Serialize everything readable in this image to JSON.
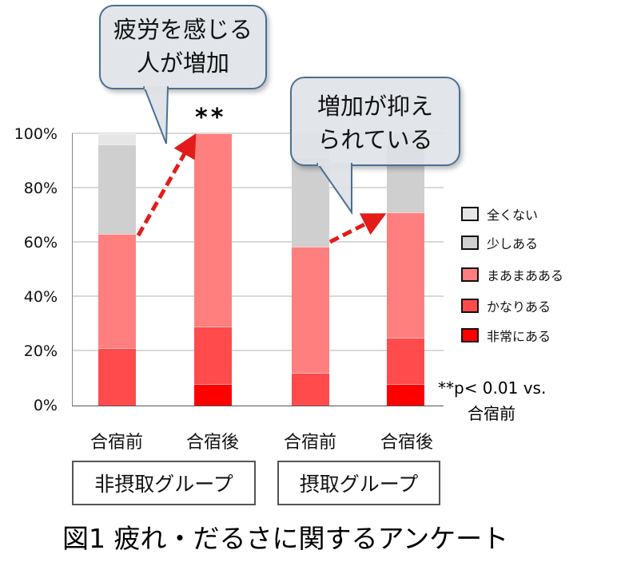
{
  "chart_data": {
    "type": "bar",
    "stacked": true,
    "title": "図1 疲れ・だるさに関するアンケート",
    "xlabel": "",
    "ylabel": "",
    "ylim": [
      0,
      100
    ],
    "yticks": [
      "0%",
      "20%",
      "40%",
      "60%",
      "80%",
      "100%"
    ],
    "grid": true,
    "legend_position": "right",
    "categories": [
      "合宿前",
      "合宿後",
      "合宿前",
      "合宿後"
    ],
    "groups": [
      {
        "label": "非摂取グループ",
        "categories": [
          "合宿前",
          "合宿後"
        ]
      },
      {
        "label": "摂取グループ",
        "categories": [
          "合宿前",
          "合宿後"
        ]
      }
    ],
    "series": [
      {
        "name": "非常にある",
        "color": "#ff0000",
        "values": [
          0,
          8,
          0,
          8
        ]
      },
      {
        "name": "かなりある",
        "color": "#ff4b4b",
        "values": [
          21,
          21,
          12,
          17
        ]
      },
      {
        "name": "まあまあある",
        "color": "#ff7f7f",
        "values": [
          42,
          71,
          46.5,
          46
        ]
      },
      {
        "name": "少しある",
        "color": "#cfcfcf",
        "values": [
          33,
          0,
          32.5,
          25
        ]
      },
      {
        "name": "全くない",
        "color": "#e6e6e6",
        "values": [
          4,
          0,
          9,
          4
        ]
      }
    ],
    "annotations": [
      {
        "text": "疲労を感じる人が増加",
        "type": "callout"
      },
      {
        "text": "増加が抑えられている",
        "type": "callout"
      },
      {
        "text": "**",
        "target": "非摂取グループ 合宿後"
      },
      {
        "text": "**p< 0.01 vs. 合宿前",
        "type": "footnote"
      }
    ]
  },
  "labels": {
    "yticks": [
      "100%",
      "80%",
      "60%",
      "40%",
      "20%",
      "0%"
    ],
    "x": [
      "合宿前",
      "合宿後",
      "合宿前",
      "合宿後"
    ],
    "group1": "非摂取グループ",
    "group2": "摂取グループ",
    "callout1_line1": "疲労を感じる",
    "callout1_line2": "人が増加",
    "callout2_line1": "増加が抑え",
    "callout2_line2": "られている",
    "sig_mark": "**",
    "footnote_line1": "**p< 0.01 vs.",
    "footnote_line2": "合宿前",
    "legend": [
      "全くない",
      "少しある",
      "まあまあある",
      "かなりある",
      "非常にある"
    ],
    "title": "図1 疲れ・だるさに関するアンケート"
  }
}
